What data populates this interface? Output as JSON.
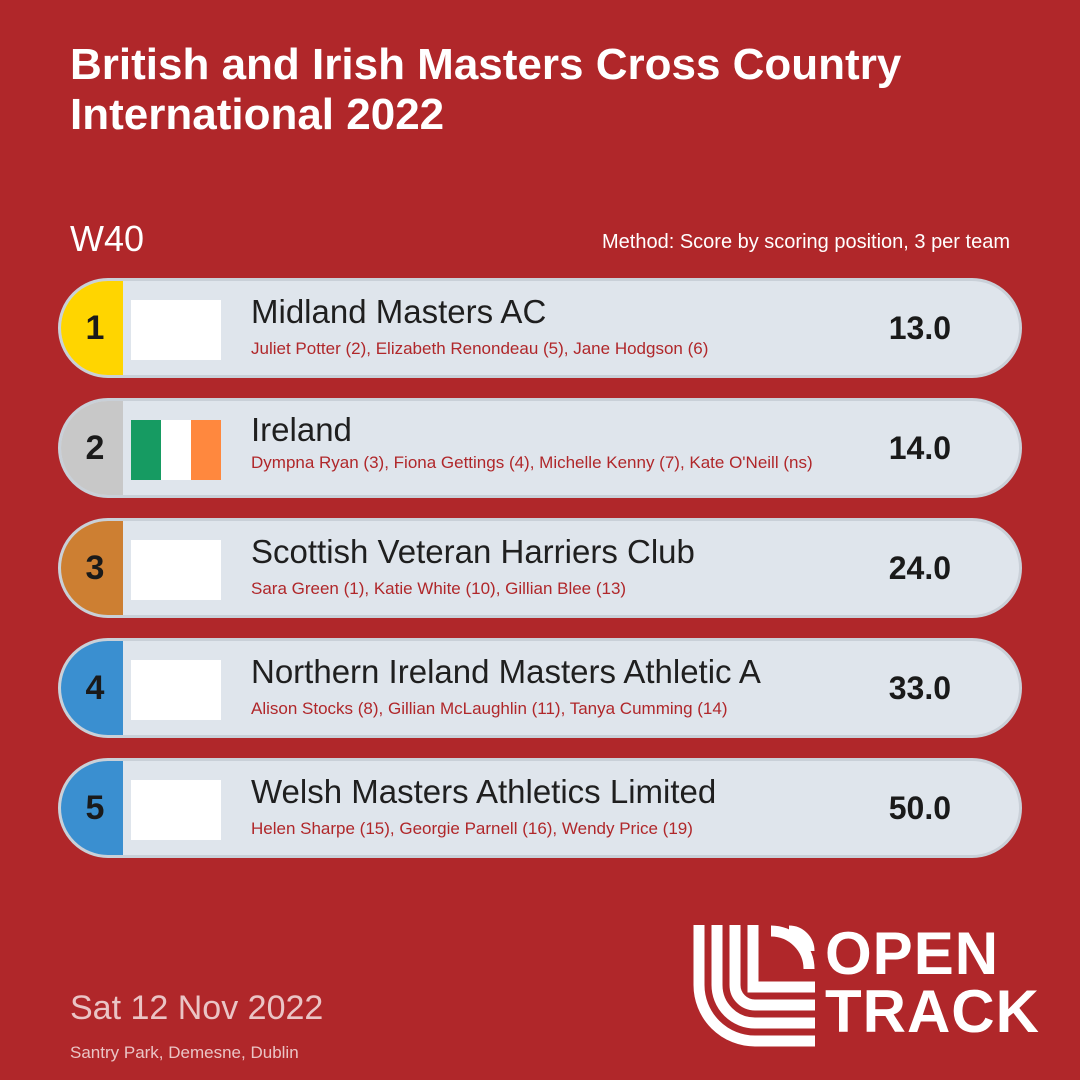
{
  "header": {
    "title": "British and Irish Masters Cross Country International 2022",
    "category": "W40",
    "method": "Method: Score by scoring position, 3 per team"
  },
  "results": [
    {
      "position": "1",
      "position_color": "#ffd500",
      "flag": [
        "#ffffff"
      ],
      "team": "Midland Masters AC",
      "members": "Juliet Potter (2), Elizabeth Renondeau (5), Jane Hodgson (6)",
      "score": "13.0"
    },
    {
      "position": "2",
      "position_color": "#c8c8c8",
      "flag": [
        "#169b62",
        "#ffffff",
        "#ff883e"
      ],
      "team": "Ireland",
      "members": "Dympna Ryan (3), Fiona Gettings (4), Michelle Kenny (7), Kate O'Neill (ns)",
      "score": "14.0"
    },
    {
      "position": "3",
      "position_color": "#cd7f32",
      "flag": [
        "#ffffff"
      ],
      "team": "Scottish Veteran Harriers Club",
      "members": "Sara Green (1), Katie White (10), Gillian Blee (13)",
      "score": "24.0"
    },
    {
      "position": "4",
      "position_color": "#3a8fd0",
      "flag": [
        "#ffffff"
      ],
      "team": "Northern Ireland Masters Athletic A",
      "members": "Alison Stocks (8), Gillian McLaughlin (11), Tanya Cumming (14)",
      "score": "33.0"
    },
    {
      "position": "5",
      "position_color": "#3a8fd0",
      "flag": [
        "#ffffff"
      ],
      "team": "Welsh Masters Athletics Limited",
      "members": "Helen Sharpe (15), Georgie Parnell (16), Wendy Price (19)",
      "score": "50.0"
    }
  ],
  "footer": {
    "date": "Sat 12 Nov 2022",
    "venue": "Santry Park, Demesne, Dublin"
  },
  "logo": {
    "line1": "OPEN",
    "line2": "TRACK",
    "icon": "opentrack-stripes-icon"
  }
}
